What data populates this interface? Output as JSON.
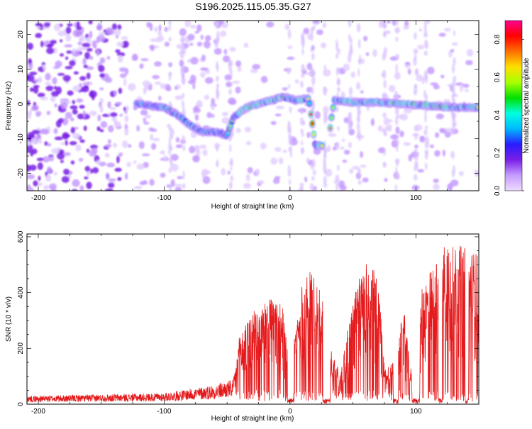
{
  "title": "S196.2025.115.05.35.G27",
  "chart_data": [
    {
      "type": "heatmap",
      "xlabel": "Height of straight line (km)",
      "ylabel": "Frequency (Hz)",
      "xlim": [
        -209,
        150
      ],
      "ylim": [
        -25,
        24
      ],
      "x_ticks": [
        -200,
        -100,
        0,
        100
      ],
      "y_ticks": [
        -20,
        -10,
        0,
        10,
        20
      ],
      "colorbar": {
        "label": "Normalized spectral amplitude",
        "range": [
          0,
          0.9
        ],
        "ticks": [
          "0.0",
          "0.2",
          "0.4",
          "0.6",
          "0.8"
        ],
        "colors": [
          "#efdcff",
          "#c59cff",
          "#7a1fe6",
          "#2a1bff",
          "#00b8ff",
          "#00ffe0",
          "#00e000",
          "#a8ff00",
          "#ffe000",
          "#ff7000",
          "#ff0000",
          "#ff0090"
        ]
      },
      "ridge": [
        {
          "x": -120,
          "y": 0
        },
        {
          "x": -100,
          "y": -1
        },
        {
          "x": -90,
          "y": -3
        },
        {
          "x": -80,
          "y": -6
        },
        {
          "x": -70,
          "y": -8
        },
        {
          "x": -60,
          "y": -8
        },
        {
          "x": -50,
          "y": -9
        },
        {
          "x": -45,
          "y": -4
        },
        {
          "x": -35,
          "y": -1
        },
        {
          "x": -25,
          "y": 0
        },
        {
          "x": -15,
          "y": 1
        },
        {
          "x": -5,
          "y": 2
        },
        {
          "x": 5,
          "y": 1
        },
        {
          "x": 15,
          "y": 1.5
        },
        {
          "x": 20,
          "y": -12
        },
        {
          "x": 30,
          "y": -12
        },
        {
          "x": 35,
          "y": 1
        },
        {
          "x": 50,
          "y": 0.5
        },
        {
          "x": 70,
          "y": 0.5
        },
        {
          "x": 90,
          "y": 0
        },
        {
          "x": 110,
          "y": -0.5
        },
        {
          "x": 130,
          "y": -1
        },
        {
          "x": 150,
          "y": -1
        }
      ]
    },
    {
      "type": "line",
      "xlabel": "Height of straight line (km)",
      "ylabel": "SNR (10 * v/v)",
      "xlim": [
        -209,
        150
      ],
      "ylim": [
        0,
        610
      ],
      "x_ticks": [
        -200,
        -100,
        0,
        100
      ],
      "y_ticks": [
        0,
        200,
        400,
        600
      ],
      "line_color": "#e41a1c",
      "envelope": [
        {
          "x": -209,
          "y": 30
        },
        {
          "x": -150,
          "y": 35
        },
        {
          "x": -100,
          "y": 40
        },
        {
          "x": -60,
          "y": 70
        },
        {
          "x": -45,
          "y": 90
        },
        {
          "x": -40,
          "y": 250
        },
        {
          "x": -30,
          "y": 330
        },
        {
          "x": -15,
          "y": 380
        },
        {
          "x": -5,
          "y": 350
        },
        {
          "x": 0,
          "y": 160
        },
        {
          "x": 10,
          "y": 440
        },
        {
          "x": 15,
          "y": 480
        },
        {
          "x": 25,
          "y": 420
        },
        {
          "x": 30,
          "y": 220
        },
        {
          "x": 40,
          "y": 120
        },
        {
          "x": 50,
          "y": 380
        },
        {
          "x": 60,
          "y": 520
        },
        {
          "x": 70,
          "y": 470
        },
        {
          "x": 75,
          "y": 130
        },
        {
          "x": 85,
          "y": 160
        },
        {
          "x": 90,
          "y": 370
        },
        {
          "x": 95,
          "y": 150
        },
        {
          "x": 100,
          "y": 60
        },
        {
          "x": 105,
          "y": 430
        },
        {
          "x": 115,
          "y": 500
        },
        {
          "x": 125,
          "y": 610
        },
        {
          "x": 135,
          "y": 570
        },
        {
          "x": 150,
          "y": 540
        }
      ],
      "dropouts": [
        {
          "x1": -2,
          "x2": 3
        },
        {
          "x1": 26,
          "x2": 32
        },
        {
          "x1": 82,
          "x2": 86
        },
        {
          "x1": 97,
          "x2": 103
        },
        {
          "x1": 118,
          "x2": 121
        },
        {
          "x1": 139,
          "x2": 142
        }
      ]
    }
  ]
}
